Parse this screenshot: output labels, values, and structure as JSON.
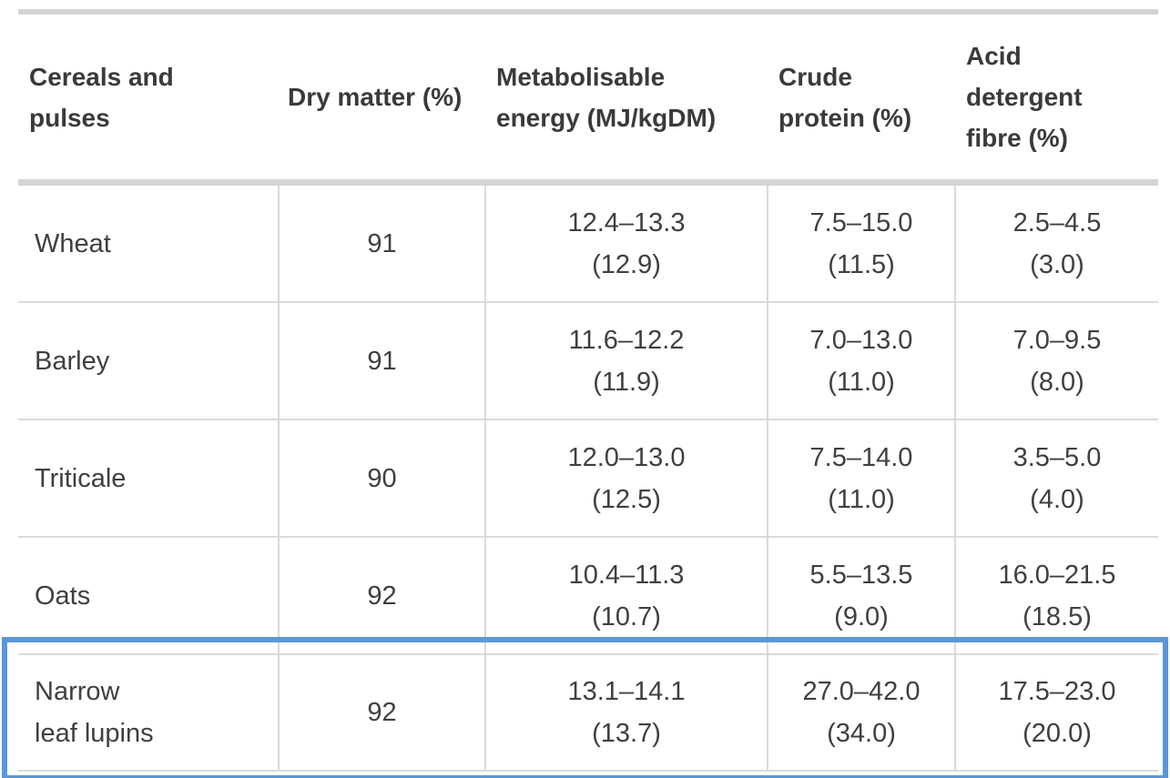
{
  "table": {
    "headers": {
      "name": [
        "Cereals and",
        "pulses"
      ],
      "dry_matter": [
        "Dry matter (%)"
      ],
      "me": [
        "Metabolisable",
        "energy (MJ/kgDM)"
      ],
      "cp": [
        "Crude",
        "protein (%)"
      ],
      "adf": [
        "Acid",
        "detergent",
        "fibre (%)"
      ]
    },
    "rows": [
      {
        "name": [
          "Wheat"
        ],
        "dry_matter": "91",
        "me": {
          "range": "12.4–13.3",
          "avg": "(12.9)"
        },
        "cp": {
          "range": "7.5–15.0",
          "avg": "(11.5)"
        },
        "adf": {
          "range": "2.5–4.5",
          "avg": "(3.0)"
        }
      },
      {
        "name": [
          "Barley"
        ],
        "dry_matter": "91",
        "me": {
          "range": "11.6–12.2",
          "avg": "(11.9)"
        },
        "cp": {
          "range": "7.0–13.0",
          "avg": "(11.0)"
        },
        "adf": {
          "range": "7.0–9.5",
          "avg": "(8.0)"
        }
      },
      {
        "name": [
          "Triticale"
        ],
        "dry_matter": "90",
        "me": {
          "range": "12.0–13.0",
          "avg": "(12.5)"
        },
        "cp": {
          "range": "7.5–14.0",
          "avg": "(11.0)"
        },
        "adf": {
          "range": "3.5–5.0",
          "avg": "(4.0)"
        }
      },
      {
        "name": [
          "Oats"
        ],
        "dry_matter": "92",
        "me": {
          "range": "10.4–11.3",
          "avg": "(10.7)"
        },
        "cp": {
          "range": "5.5–13.5",
          "avg": "(9.0)"
        },
        "adf": {
          "range": "16.0–21.5",
          "avg": "(18.5)"
        }
      },
      {
        "name": [
          "Narrow",
          "leaf lupins"
        ],
        "dry_matter": "92",
        "me": {
          "range": "13.1–14.1",
          "avg": "(13.7)"
        },
        "cp": {
          "range": "27.0–42.0",
          "avg": "(34.0)"
        },
        "adf": {
          "range": "17.5–23.0",
          "avg": "(20.0)"
        }
      }
    ]
  },
  "highlight": {
    "row_index": 4,
    "color": "#5a97d6"
  },
  "colors": {
    "rule": "#d4d4d4",
    "grid": "#d9d9d9",
    "text": "#3c3c3c"
  }
}
